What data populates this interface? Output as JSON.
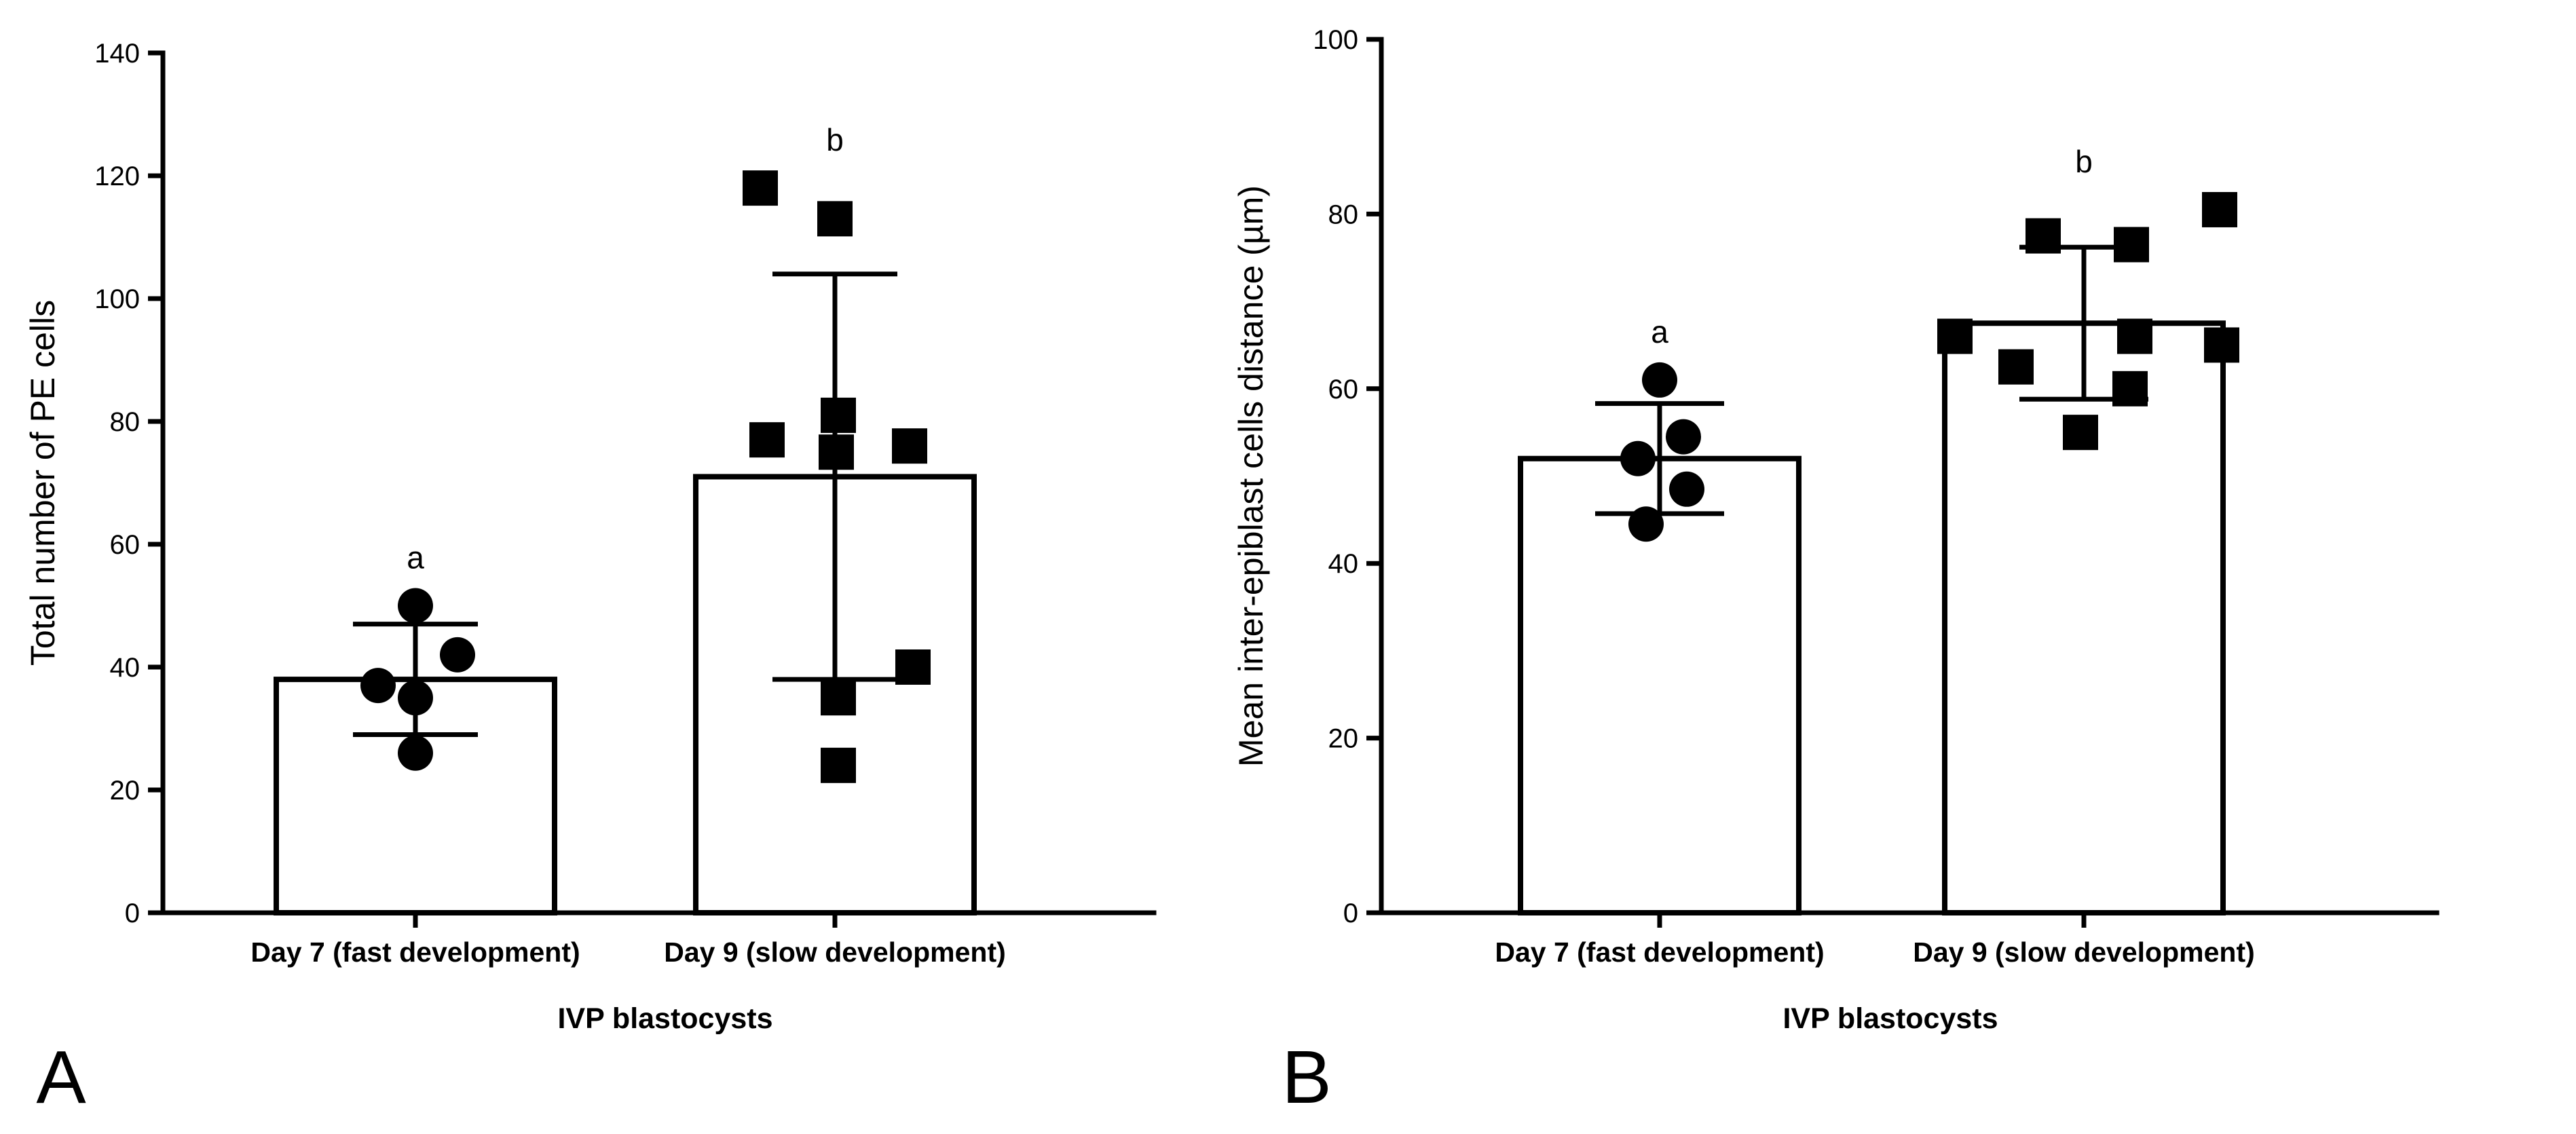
{
  "chart_data": [
    {
      "type": "bar",
      "panel_label": "A",
      "xlabel": "IVP blastocysts",
      "ylabel": "Total number of PE cells",
      "ylim": [
        0,
        140
      ],
      "yticks": [
        0,
        20,
        40,
        60,
        80,
        100,
        120,
        140
      ],
      "categories": [
        "Day 7 (fast development)",
        "Day 9 (slow development)"
      ],
      "means": [
        38,
        71
      ],
      "sd": [
        9,
        33
      ],
      "letters": [
        "a",
        "b"
      ],
      "marker_shapes": [
        "circle",
        "square"
      ],
      "points": [
        [
          50,
          42,
          37,
          35,
          26
        ],
        [
          118,
          113,
          81,
          77,
          75,
          76,
          40,
          35,
          24
        ]
      ]
    },
    {
      "type": "bar",
      "panel_label": "B",
      "xlabel": "IVP blastocysts",
      "ylabel": "Mean inter-epiblast cells distance (µm)",
      "ylim": [
        0,
        100
      ],
      "yticks": [
        0,
        20,
        40,
        60,
        80,
        100
      ],
      "categories": [
        "Day 7 (fast development)",
        "Day 9 (slow development)"
      ],
      "means": [
        52,
        67.5
      ],
      "sd": [
        6.3,
        8.7
      ],
      "letters": [
        "a",
        "b"
      ],
      "marker_shapes": [
        "circle",
        "square"
      ],
      "points": [
        [
          61,
          54.5,
          52,
          48.5,
          44.5
        ],
        [
          80.5,
          77.5,
          76.5,
          66,
          66,
          65,
          62.5,
          60,
          55
        ]
      ]
    }
  ]
}
